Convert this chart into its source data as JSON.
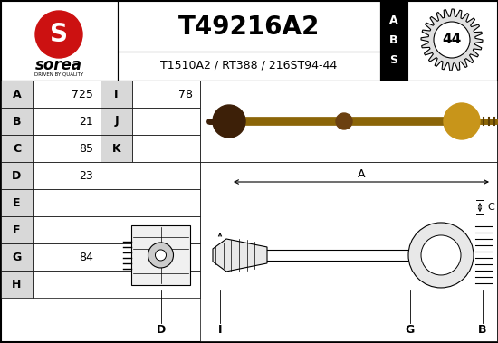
{
  "title": "T49216A2",
  "subtitle": "T1510A2 / RT388 / 216ST94-44",
  "brand": "sorea",
  "brand_tagline": "DRIVEN BY QUALITY",
  "abs_number": "44",
  "table_rows": [
    {
      "letter": "A",
      "value": "725"
    },
    {
      "letter": "B",
      "value": "21"
    },
    {
      "letter": "C",
      "value": "85"
    },
    {
      "letter": "D",
      "value": "23"
    },
    {
      "letter": "E",
      "value": ""
    },
    {
      "letter": "F",
      "value": ""
    },
    {
      "letter": "G",
      "value": "84"
    },
    {
      "letter": "H",
      "value": ""
    }
  ],
  "table_rows2": [
    {
      "letter": "I",
      "value": "78"
    },
    {
      "letter": "J",
      "value": ""
    },
    {
      "letter": "K",
      "value": ""
    }
  ],
  "bg_color": "#ffffff",
  "logo_red": "#cc1111",
  "font_size_title": 20,
  "font_size_sub": 9,
  "font_size_table": 9
}
